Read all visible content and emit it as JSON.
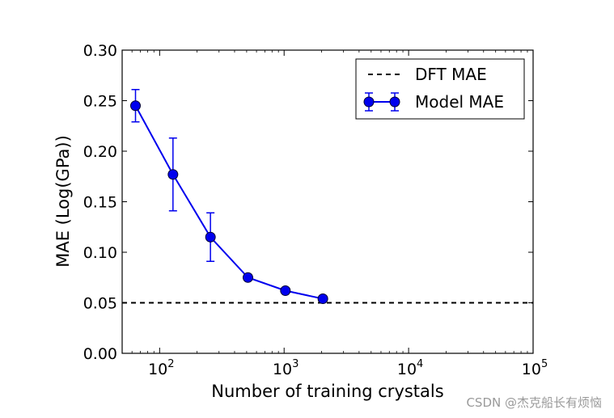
{
  "chart_data": {
    "type": "line",
    "xscale": "log",
    "xlabel": "Number of training crystals",
    "ylabel": "MAE (Log(GPa))",
    "xlim": [
      50,
      100000
    ],
    "ylim": [
      0.0,
      0.3
    ],
    "yticks": [
      0.0,
      0.05,
      0.1,
      0.15,
      0.2,
      0.25,
      0.3
    ],
    "ytick_labels": [
      "0.00",
      "0.05",
      "0.10",
      "0.15",
      "0.20",
      "0.25",
      "0.30"
    ],
    "xticks": [
      {
        "value": 100,
        "base": "10",
        "exp": "2"
      },
      {
        "value": 1000,
        "base": "10",
        "exp": "3"
      },
      {
        "value": 10000,
        "base": "10",
        "exp": "4"
      },
      {
        "value": 100000,
        "base": "10",
        "exp": "5"
      }
    ],
    "series": [
      {
        "name": "Model MAE",
        "color": "#0000ee",
        "x": [
          64,
          128,
          256,
          512,
          1024,
          2048
        ],
        "y": [
          0.245,
          0.177,
          0.115,
          0.075,
          0.062,
          0.054
        ],
        "err": [
          0.016,
          0.036,
          0.024,
          0.0,
          0.0,
          0.0
        ]
      }
    ],
    "reference_lines": [
      {
        "name": "DFT MAE",
        "y": 0.05,
        "style": "dashed",
        "color": "#000000"
      }
    ],
    "legend": {
      "position": "top-right",
      "entries": [
        "DFT MAE",
        "Model MAE"
      ]
    }
  },
  "watermark": "CSDN @杰克船长有烦恼"
}
